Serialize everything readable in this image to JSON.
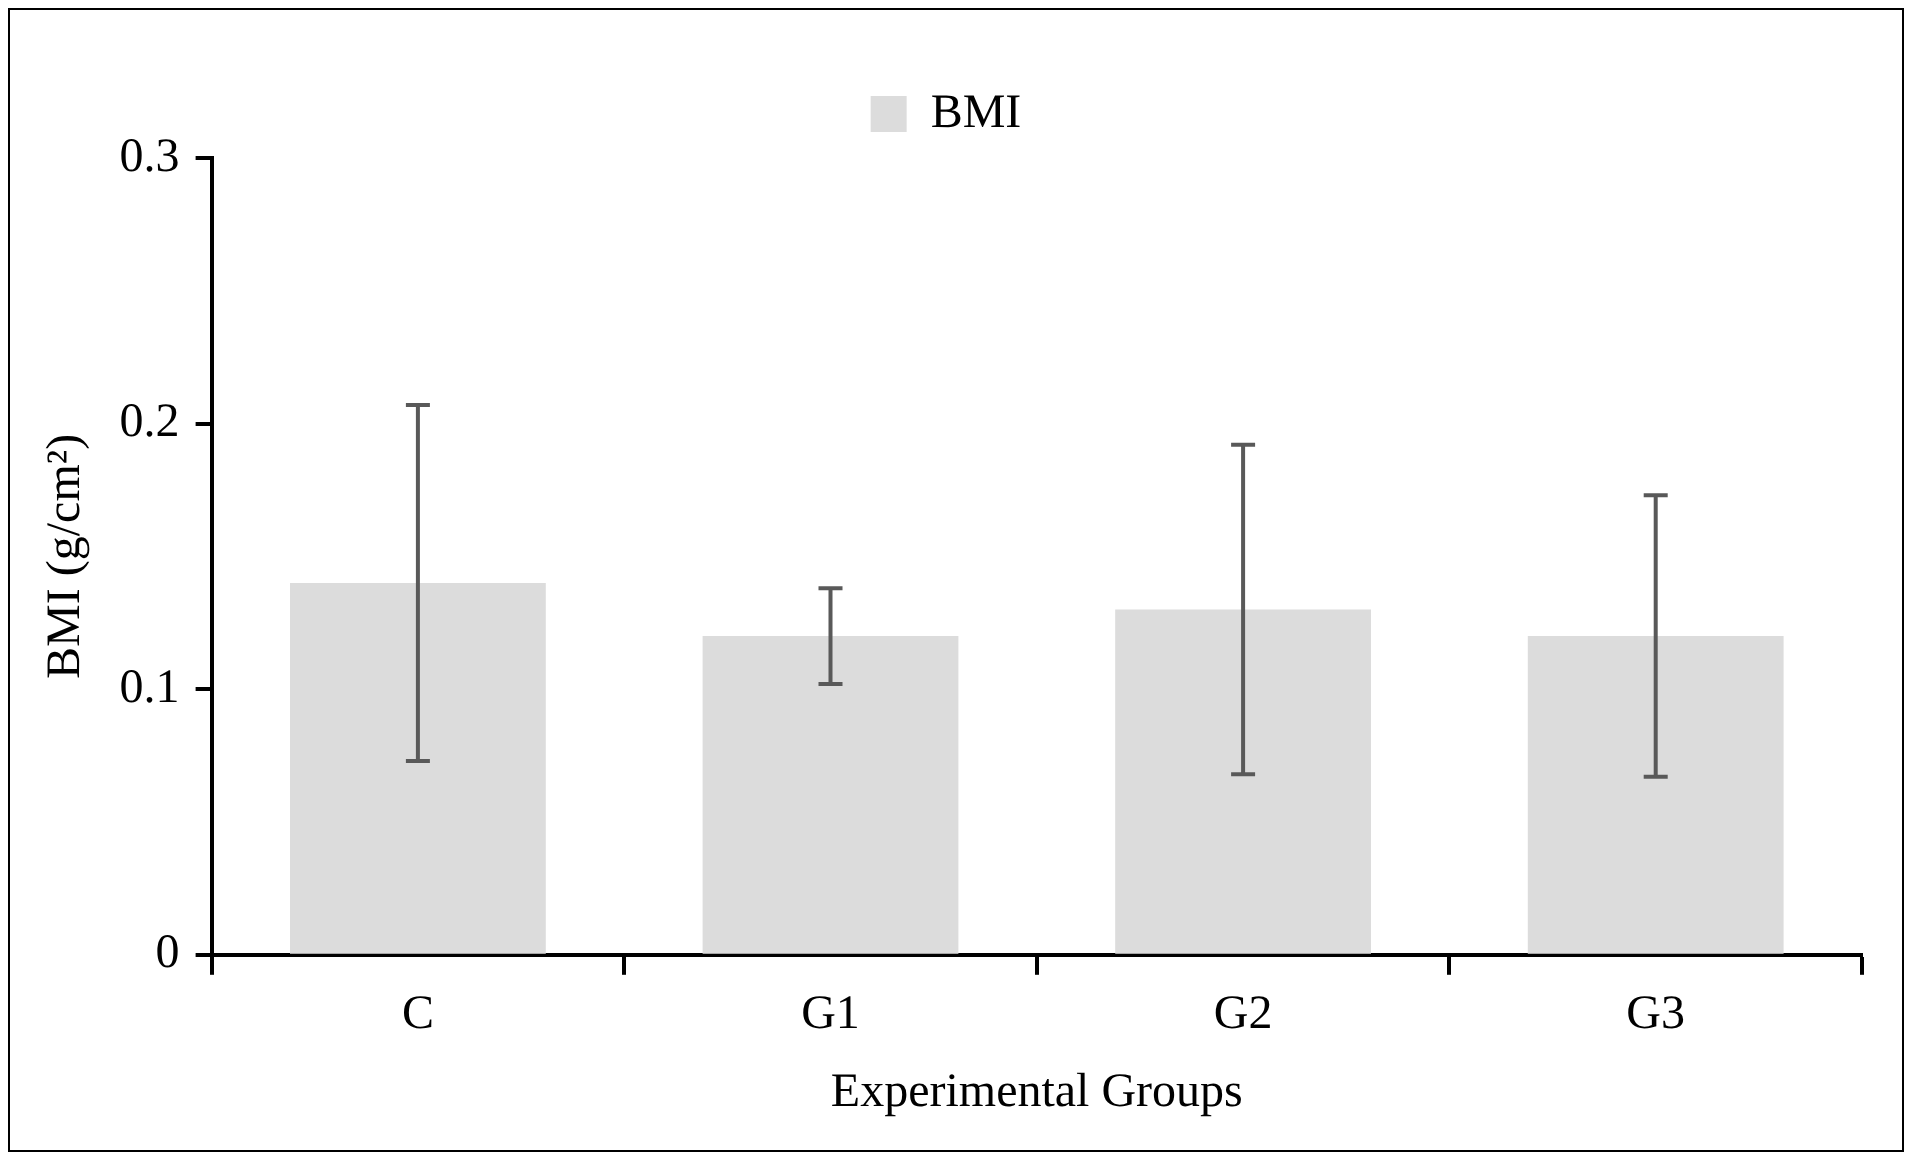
{
  "chart_data": {
    "type": "bar",
    "xlabel": "Experimental Groups",
    "ylabel": "BMI (g/cm²)",
    "categories": [
      "C",
      "G1",
      "G2",
      "G3"
    ],
    "series": [
      {
        "name": "BMI",
        "color": "#dcdcdc",
        "values": [
          0.14,
          0.12,
          0.13,
          0.12
        ],
        "errors": [
          0.067,
          0.018,
          0.062,
          0.053
        ]
      }
    ],
    "ylim": [
      0,
      0.3
    ],
    "yticks": [
      0,
      0.1,
      0.2,
      0.3
    ],
    "grid": false,
    "legend": "top"
  }
}
